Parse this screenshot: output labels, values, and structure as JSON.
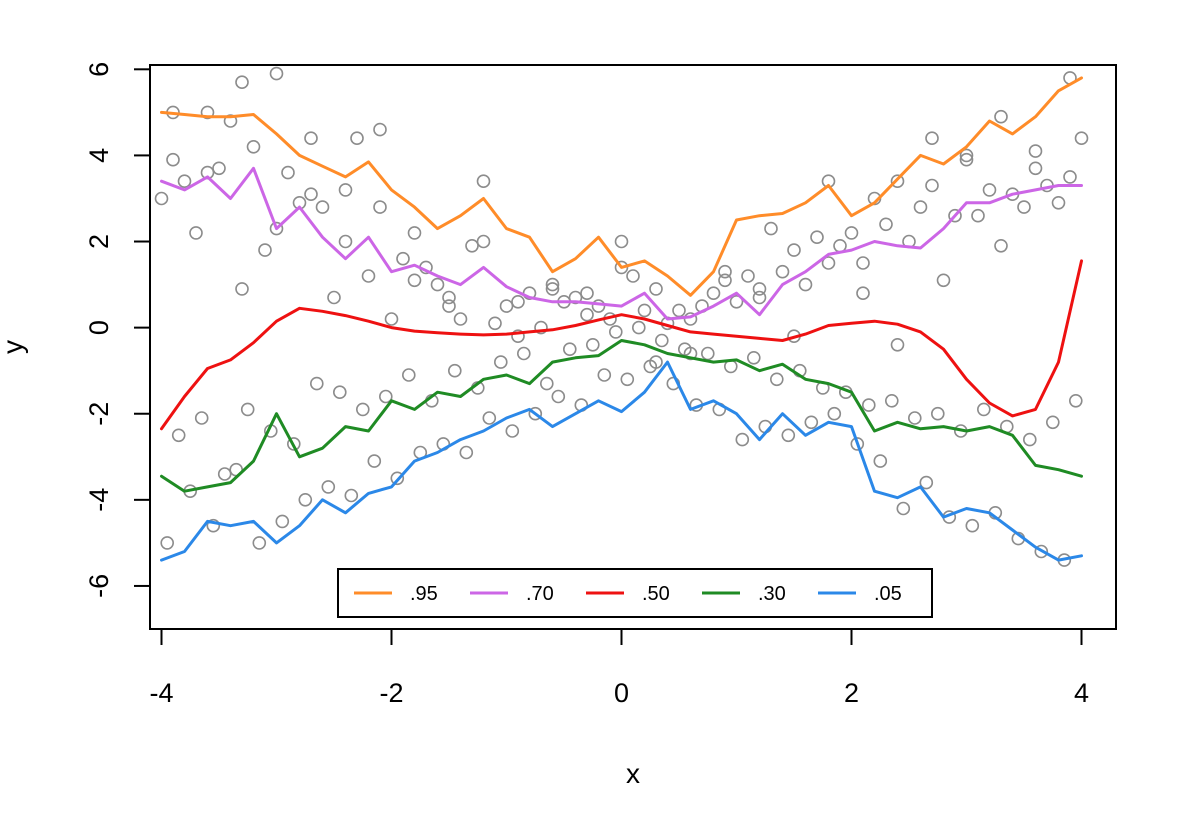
{
  "chart_data": {
    "type": "scatter",
    "title": "",
    "xlabel": "x",
    "ylabel": "y",
    "xlim": [
      -4.1,
      4.3
    ],
    "ylim": [
      -7.0,
      6.1
    ],
    "xticks": [
      -4,
      -2,
      0,
      2,
      4
    ],
    "xtick_labels": [
      "-4",
      "-2",
      "0",
      "2",
      "4"
    ],
    "yticks": [
      -6,
      -4,
      -2,
      0,
      2,
      4,
      6
    ],
    "ytick_labels": [
      "-6",
      "-4",
      "-2",
      "0",
      "2",
      "4",
      "6"
    ],
    "grid": false,
    "legend_position": "bottom-center",
    "point_color": "#8c8c8c",
    "points": {
      "x": [
        -4.0,
        -3.9,
        -3.8,
        -3.7,
        -3.6,
        -3.5,
        -3.4,
        -3.3,
        -3.2,
        -3.1,
        -3.0,
        -2.9,
        -2.8,
        -2.7,
        -2.6,
        -2.5,
        -2.4,
        -2.3,
        -2.2,
        -2.1,
        -2.0,
        -1.9,
        -1.8,
        -1.7,
        -1.6,
        -1.5,
        -1.4,
        -1.3,
        -1.2,
        -1.1,
        -1.0,
        -0.9,
        -0.8,
        -0.7,
        -0.6,
        -0.5,
        -0.4,
        -0.3,
        -0.2,
        -0.1,
        0.0,
        0.1,
        0.2,
        0.3,
        0.4,
        0.5,
        0.6,
        0.7,
        0.8,
        0.9,
        1.0,
        1.1,
        1.2,
        1.3,
        1.4,
        1.5,
        1.6,
        1.7,
        1.8,
        1.9,
        2.0,
        2.1,
        2.2,
        2.3,
        2.4,
        2.5,
        2.6,
        2.7,
        2.8,
        2.9,
        3.0,
        3.1,
        3.2,
        3.3,
        3.4,
        3.5,
        3.6,
        3.7,
        3.8,
        3.9,
        4.0,
        -3.95,
        -3.75,
        -3.55,
        -3.35,
        -3.15,
        -2.95,
        -2.75,
        -2.55,
        -2.35,
        -2.15,
        -1.95,
        -1.75,
        -1.55,
        -1.35,
        -1.15,
        -0.95,
        -0.75,
        -0.55,
        -0.35,
        -0.15,
        0.05,
        0.25,
        0.45,
        0.65,
        0.85,
        1.05,
        1.25,
        1.45,
        1.65,
        1.85,
        2.05,
        2.25,
        2.45,
        2.65,
        2.85,
        3.05,
        3.25,
        3.45,
        3.65,
        3.85,
        -3.85,
        -3.65,
        -3.45,
        -3.25,
        -3.05,
        -2.85,
        -2.65,
        -2.45,
        -2.25,
        -2.05,
        -1.85,
        -1.65,
        -1.45,
        -1.25,
        -1.05,
        -0.85,
        -0.65,
        -0.45,
        -0.25,
        -0.05,
        0.15,
        0.35,
        0.55,
        0.75,
        0.95,
        1.15,
        1.35,
        1.55,
        1.75,
        1.95,
        2.15,
        2.35,
        2.55,
        2.75,
        2.95,
        3.15,
        3.35,
        3.55,
        3.75,
        3.95,
        -3.9,
        -3.6,
        -3.3,
        -3.0,
        -2.7,
        -2.4,
        -2.1,
        -1.8,
        -1.5,
        -1.2,
        -0.9,
        -0.6,
        -0.3,
        0.0,
        0.3,
        0.6,
        0.9,
        1.2,
        1.5,
        1.8,
        2.1,
        2.4,
        2.7,
        3.0,
        3.3,
        3.6,
        3.9
      ],
      "y": [
        3.0,
        3.9,
        3.4,
        2.2,
        3.6,
        3.7,
        4.8,
        0.9,
        4.2,
        1.8,
        2.3,
        3.6,
        2.9,
        3.1,
        2.8,
        0.7,
        2.0,
        4.4,
        1.2,
        2.8,
        0.2,
        1.6,
        2.2,
        1.4,
        1.0,
        0.7,
        0.2,
        1.9,
        2.0,
        0.1,
        0.5,
        0.6,
        0.8,
        0.0,
        0.9,
        0.6,
        0.7,
        0.8,
        0.5,
        0.2,
        1.4,
        1.2,
        0.4,
        0.9,
        0.1,
        0.4,
        0.2,
        0.5,
        0.8,
        1.3,
        0.6,
        1.2,
        0.9,
        2.3,
        1.3,
        1.8,
        1.0,
        2.1,
        1.5,
        1.9,
        2.2,
        1.5,
        3.0,
        2.4,
        3.4,
        2.0,
        2.8,
        3.3,
        1.1,
        2.6,
        3.9,
        2.6,
        3.2,
        4.9,
        3.1,
        2.8,
        4.1,
        3.3,
        2.9,
        3.5,
        4.4,
        -5.0,
        -3.8,
        -4.6,
        -3.3,
        -5.0,
        -4.5,
        -4.0,
        -3.7,
        -3.9,
        -3.1,
        -3.5,
        -2.9,
        -2.7,
        -2.9,
        -2.1,
        -2.4,
        -2.0,
        -1.6,
        -1.8,
        -1.1,
        -1.2,
        -0.9,
        -1.3,
        -1.8,
        -1.9,
        -2.6,
        -2.3,
        -2.5,
        -2.2,
        -2.0,
        -2.7,
        -3.1,
        -4.2,
        -3.6,
        -4.4,
        -4.6,
        -4.3,
        -4.9,
        -5.2,
        -5.4,
        -2.5,
        -2.1,
        -3.4,
        -1.9,
        -2.4,
        -2.7,
        -1.3,
        -1.5,
        -1.9,
        -1.6,
        -1.1,
        -1.7,
        -1.0,
        -1.4,
        -0.8,
        -0.6,
        -1.3,
        -0.5,
        -0.4,
        -0.1,
        0.0,
        -0.3,
        -0.5,
        -0.6,
        -0.9,
        -0.7,
        -1.2,
        -1.0,
        -1.4,
        -1.5,
        -1.8,
        -1.7,
        -2.1,
        -2.0,
        -2.4,
        -1.9,
        -2.3,
        -2.6,
        -2.2,
        -1.7,
        5.0,
        5.0,
        5.7,
        5.9,
        4.4,
        3.2,
        4.6,
        1.1,
        0.5,
        3.4,
        -0.2,
        1.0,
        0.3,
        2.0,
        -0.8,
        -0.6,
        1.1,
        0.7,
        -0.2,
        3.4,
        0.8,
        -0.4,
        4.4,
        4.0,
        1.9,
        3.7,
        5.8
      ]
    },
    "series": [
      {
        "name": ".95",
        "color": "#ff8c29",
        "x": [
          -4.0,
          -3.8,
          -3.6,
          -3.4,
          -3.2,
          -3.0,
          -2.8,
          -2.6,
          -2.4,
          -2.2,
          -2.0,
          -1.8,
          -1.6,
          -1.4,
          -1.2,
          -1.0,
          -0.8,
          -0.6,
          -0.4,
          -0.2,
          0.0,
          0.2,
          0.4,
          0.6,
          0.8,
          1.0,
          1.2,
          1.4,
          1.6,
          1.8,
          2.0,
          2.2,
          2.4,
          2.6,
          2.8,
          3.0,
          3.2,
          3.4,
          3.6,
          3.8,
          4.0
        ],
        "values": [
          5.0,
          4.95,
          4.9,
          4.9,
          4.95,
          4.5,
          4.0,
          3.75,
          3.5,
          3.85,
          3.2,
          2.8,
          2.3,
          2.6,
          3.0,
          2.3,
          2.1,
          1.3,
          1.6,
          2.1,
          1.4,
          1.55,
          1.2,
          0.75,
          1.3,
          2.5,
          2.6,
          2.65,
          2.9,
          3.3,
          2.6,
          2.9,
          3.45,
          4.0,
          3.8,
          4.2,
          4.8,
          4.5,
          4.9,
          5.5,
          5.8
        ]
      },
      {
        "name": ".70",
        "color": "#cc66e6",
        "x": [
          -4.0,
          -3.8,
          -3.6,
          -3.4,
          -3.2,
          -3.0,
          -2.8,
          -2.6,
          -2.4,
          -2.2,
          -2.0,
          -1.8,
          -1.6,
          -1.4,
          -1.2,
          -1.0,
          -0.8,
          -0.6,
          -0.4,
          -0.2,
          0.0,
          0.2,
          0.4,
          0.6,
          0.8,
          1.0,
          1.2,
          1.4,
          1.6,
          1.8,
          2.0,
          2.2,
          2.4,
          2.6,
          2.8,
          3.0,
          3.2,
          3.4,
          3.6,
          3.8,
          4.0
        ],
        "values": [
          3.4,
          3.2,
          3.5,
          3.0,
          3.7,
          2.3,
          2.8,
          2.1,
          1.6,
          2.1,
          1.3,
          1.45,
          1.2,
          1.0,
          1.4,
          0.95,
          0.7,
          0.6,
          0.6,
          0.55,
          0.5,
          0.8,
          0.2,
          0.25,
          0.5,
          0.8,
          0.3,
          1.0,
          1.3,
          1.7,
          1.8,
          2.0,
          1.9,
          1.85,
          2.3,
          2.9,
          2.9,
          3.1,
          3.2,
          3.3,
          3.3
        ]
      },
      {
        "name": ".50",
        "color": "#ee1111",
        "x": [
          -4.0,
          -3.8,
          -3.6,
          -3.4,
          -3.2,
          -3.0,
          -2.8,
          -2.6,
          -2.4,
          -2.2,
          -2.0,
          -1.8,
          -1.6,
          -1.4,
          -1.2,
          -1.0,
          -0.8,
          -0.6,
          -0.4,
          -0.2,
          0.0,
          0.2,
          0.4,
          0.6,
          0.8,
          1.0,
          1.2,
          1.4,
          1.6,
          1.8,
          2.0,
          2.2,
          2.4,
          2.6,
          2.8,
          3.0,
          3.2,
          3.4,
          3.6,
          3.8,
          4.0
        ],
        "values": [
          -2.35,
          -1.6,
          -0.95,
          -0.75,
          -0.35,
          0.15,
          0.45,
          0.38,
          0.28,
          0.15,
          0.0,
          -0.08,
          -0.12,
          -0.15,
          -0.17,
          -0.15,
          -0.1,
          -0.05,
          0.05,
          0.18,
          0.3,
          0.2,
          0.05,
          -0.1,
          -0.15,
          -0.2,
          -0.25,
          -0.3,
          -0.15,
          0.05,
          0.1,
          0.15,
          0.08,
          -0.1,
          -0.5,
          -1.2,
          -1.75,
          -2.05,
          -1.9,
          -0.8,
          1.55
        ]
      },
      {
        "name": ".30",
        "color": "#1f8b24",
        "x": [
          -4.0,
          -3.8,
          -3.6,
          -3.4,
          -3.2,
          -3.0,
          -2.8,
          -2.6,
          -2.4,
          -2.2,
          -2.0,
          -1.8,
          -1.6,
          -1.4,
          -1.2,
          -1.0,
          -0.8,
          -0.6,
          -0.4,
          -0.2,
          0.0,
          0.2,
          0.4,
          0.6,
          0.8,
          1.0,
          1.2,
          1.4,
          1.6,
          1.8,
          2.0,
          2.2,
          2.4,
          2.6,
          2.8,
          3.0,
          3.2,
          3.4,
          3.6,
          3.8,
          4.0
        ],
        "values": [
          -3.45,
          -3.8,
          -3.7,
          -3.6,
          -3.1,
          -2.0,
          -3.0,
          -2.8,
          -2.3,
          -2.4,
          -1.7,
          -1.9,
          -1.5,
          -1.6,
          -1.2,
          -1.1,
          -1.3,
          -0.8,
          -0.7,
          -0.65,
          -0.3,
          -0.4,
          -0.6,
          -0.7,
          -0.8,
          -0.75,
          -1.0,
          -0.85,
          -1.2,
          -1.3,
          -1.5,
          -2.4,
          -2.2,
          -2.35,
          -2.3,
          -2.4,
          -2.3,
          -2.5,
          -3.2,
          -3.3,
          -3.45
        ]
      },
      {
        "name": ".05",
        "color": "#2b88e8",
        "x": [
          -4.0,
          -3.8,
          -3.6,
          -3.4,
          -3.2,
          -3.0,
          -2.8,
          -2.6,
          -2.4,
          -2.2,
          -2.0,
          -1.8,
          -1.6,
          -1.4,
          -1.2,
          -1.0,
          -0.8,
          -0.6,
          -0.4,
          -0.2,
          0.0,
          0.2,
          0.4,
          0.6,
          0.8,
          1.0,
          1.2,
          1.4,
          1.6,
          1.8,
          2.0,
          2.2,
          2.4,
          2.6,
          2.8,
          3.0,
          3.2,
          3.4,
          3.6,
          3.8,
          4.0
        ],
        "values": [
          -5.4,
          -5.2,
          -4.5,
          -4.6,
          -4.5,
          -5.0,
          -4.6,
          -4.0,
          -4.3,
          -3.85,
          -3.7,
          -3.1,
          -2.9,
          -2.6,
          -2.4,
          -2.1,
          -1.9,
          -2.3,
          -2.0,
          -1.7,
          -1.95,
          -1.5,
          -0.8,
          -1.9,
          -1.7,
          -2.0,
          -2.6,
          -2.0,
          -2.5,
          -2.2,
          -2.3,
          -3.8,
          -3.95,
          -3.7,
          -4.4,
          -4.2,
          -4.3,
          -4.7,
          -5.1,
          -5.4,
          -5.3
        ]
      }
    ]
  }
}
